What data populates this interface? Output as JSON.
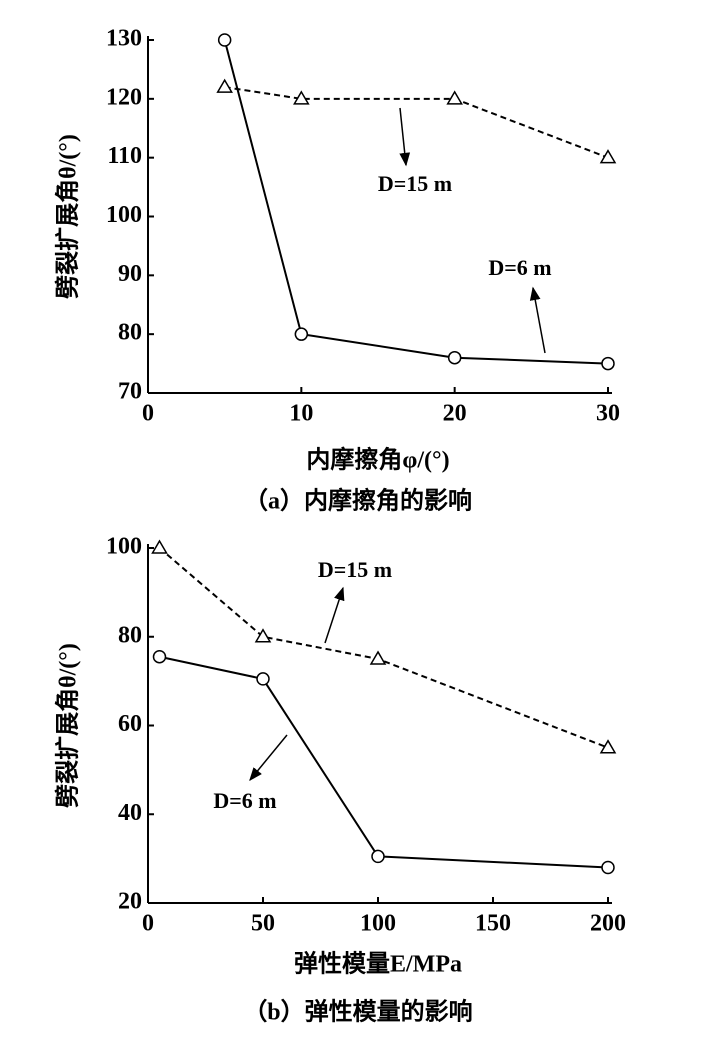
{
  "chart_data": [
    {
      "type": "line",
      "x_label": "内摩擦角φ/(°)",
      "y_label": "劈裂扩展角θ/(°)",
      "caption": "（a）内摩擦角的影响",
      "xlim": [
        0,
        30
      ],
      "xticks": [
        0,
        10,
        20,
        30
      ],
      "ylim": [
        70,
        130
      ],
      "yticks": [
        70,
        80,
        90,
        100,
        110,
        120,
        130
      ],
      "series": [
        {
          "name": "D=6 m",
          "color": "#000000",
          "line_style": "solid",
          "marker": "circle",
          "x": [
            5,
            10,
            20,
            30
          ],
          "values": [
            130,
            80,
            76,
            75
          ]
        },
        {
          "name": "D=15 m",
          "color": "#000000",
          "line_style": "dashed",
          "marker": "triangle",
          "x": [
            5,
            10,
            20,
            30
          ],
          "values": [
            122,
            120,
            120,
            110
          ]
        }
      ]
    },
    {
      "type": "line",
      "x_label": "弹性模量E/MPa",
      "y_label": "劈裂扩展角θ/(°)",
      "caption": "（b）弹性模量的影响",
      "xlim": [
        0,
        200
      ],
      "xticks": [
        0,
        50,
        100,
        150,
        200
      ],
      "ylim": [
        20,
        100
      ],
      "yticks": [
        20,
        40,
        60,
        80,
        100
      ],
      "series": [
        {
          "name": "D=6 m",
          "color": "#000000",
          "line_style": "solid",
          "marker": "circle",
          "x": [
            5,
            50,
            100,
            200
          ],
          "values": [
            75.5,
            70.5,
            30.5,
            28
          ]
        },
        {
          "name": "D=15 m",
          "color": "#000000",
          "line_style": "dashed",
          "marker": "triangle",
          "x": [
            5,
            50,
            100,
            200
          ],
          "values": [
            100,
            80,
            75,
            55
          ]
        }
      ]
    }
  ]
}
